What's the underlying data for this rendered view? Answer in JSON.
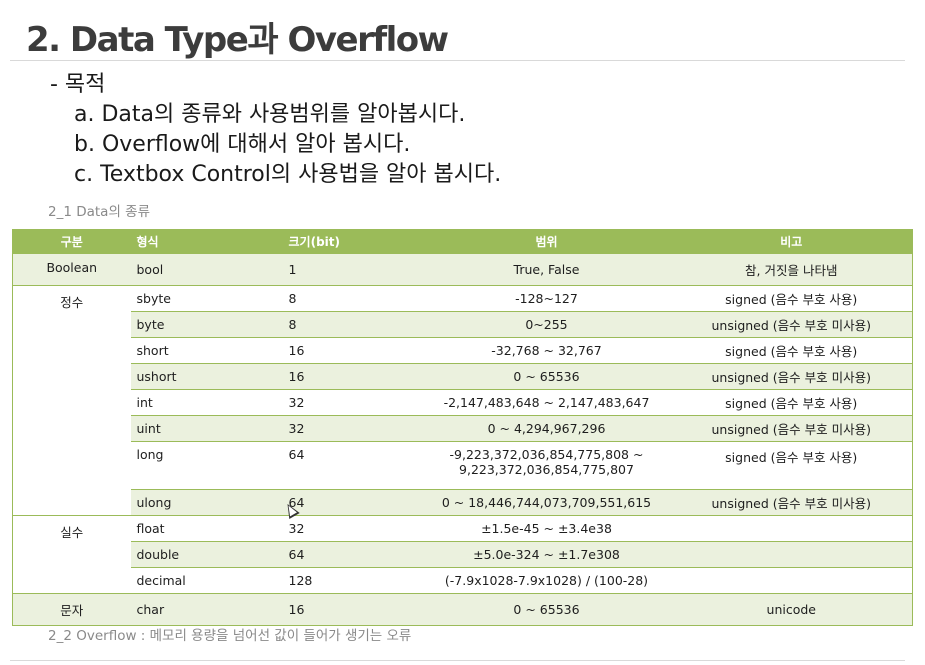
{
  "title": "2. Data Type과 Overflow",
  "objectives": {
    "heading": "- 목적",
    "items": [
      "a. Data의 종류와 사용범위를 알아봅시다.",
      "b. Overflow에 대해서 알아 봅시다.",
      "c. Textbox Control의 사용법을 알아 봅시다."
    ]
  },
  "section1": {
    "title": "2_1 Data의 종류"
  },
  "section2": {
    "title": "2_2 Overflow : 메모리 용량을 넘어선 값이 들어가 생기는 오류"
  },
  "table": {
    "headers": [
      "구분",
      "형식",
      "크기(bit)",
      "범위",
      "비고"
    ],
    "rows": [
      {
        "category": "Boolean",
        "name": "bool",
        "size": "1",
        "range": "True, False",
        "note": "참, 거짓을 나타냄"
      },
      {
        "category": "정수",
        "name": "sbyte",
        "size": "8",
        "range": "-128~127",
        "note": "signed (음수 부호 사용)"
      },
      {
        "category": "",
        "name": "byte",
        "size": "8",
        "range": "0~255",
        "note": "unsigned (음수 부호 미사용)"
      },
      {
        "category": "",
        "name": "short",
        "size": "16",
        "range": "-32,768 ~ 32,767",
        "note": "signed (음수 부호 사용)"
      },
      {
        "category": "",
        "name": "ushort",
        "size": "16",
        "range": "0 ~ 65536",
        "note": "unsigned (음수 부호 미사용)"
      },
      {
        "category": "",
        "name": "int",
        "size": "32",
        "range": "-2,147,483,648 ~ 2,147,483,647",
        "note": "signed (음수 부호 사용)"
      },
      {
        "category": "",
        "name": "uint",
        "size": "32",
        "range": "0 ~ 4,294,967,296",
        "note": "unsigned (음수 부호 미사용)"
      },
      {
        "category": "",
        "name": "long",
        "size": "64",
        "range": "-9,223,372,036,854,775,808 ~",
        "range2": "9,223,372,036,854,775,807",
        "note": "signed (음수 부호 사용)"
      },
      {
        "category": "",
        "name": "ulong",
        "size": "64",
        "range": "0 ~ 18,446,744,073,709,551,615",
        "note": "unsigned (음수 부호 미사용)"
      },
      {
        "category": "실수",
        "name": "float",
        "size": "32",
        "range": "±1.5e-45 ~ ±3.4e38",
        "note": ""
      },
      {
        "category": "",
        "name": "double",
        "size": "64",
        "range": "±5.0e-324 ~ ±1.7e308",
        "note": ""
      },
      {
        "category": "",
        "name": "decimal",
        "size": "128",
        "range": "(-7.9x1028-7.9x1028) / (100-28)",
        "note": ""
      },
      {
        "category": "문자",
        "name": "char",
        "size": "16",
        "range": "0 ~ 65536",
        "note": "unicode"
      }
    ]
  },
  "colors": {
    "header": "#9bbb59",
    "stripe": "#ebf1de",
    "title": "#3c3c3c"
  }
}
